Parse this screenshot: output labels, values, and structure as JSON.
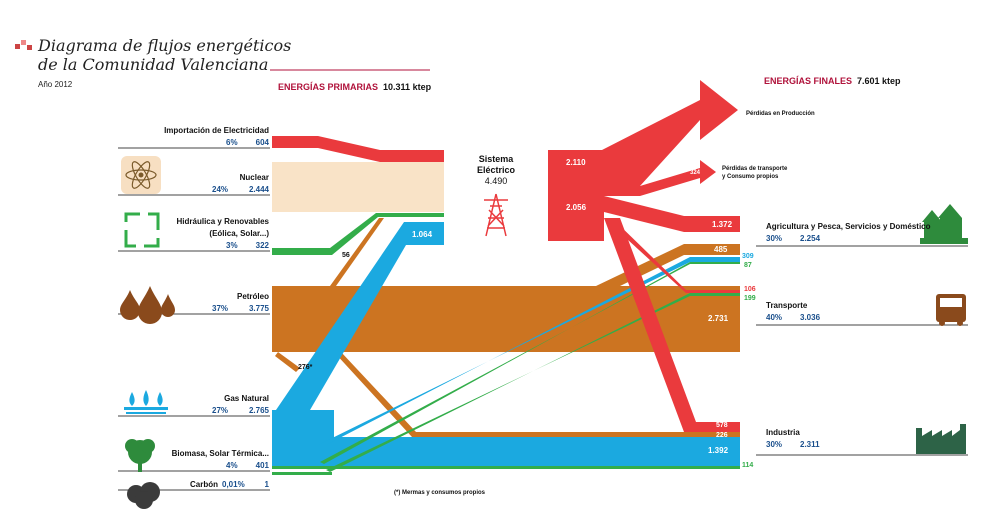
{
  "header": {
    "title_line1": "Diagrama de flujos energéticos",
    "title_line2": "de la Comunidad Valenciana",
    "year": "Año 2012"
  },
  "primary": {
    "label": "ENERGÍAS PRIMARIAS",
    "total": "10.311 ktep",
    "sources": [
      {
        "id": "importacion",
        "name": "Importación de Electricidad",
        "pct": "6%",
        "value": "604",
        "icon": "none"
      },
      {
        "id": "nuclear",
        "name": "Nuclear",
        "pct": "24%",
        "value": "2.444",
        "icon": "atom-icon"
      },
      {
        "id": "renovables",
        "name": "Hidráulica y Renovables",
        "name2": "(Eólica, Solar...)",
        "pct": "3%",
        "value": "322",
        "icon": "recycle-icon"
      },
      {
        "id": "petroleo",
        "name": "Petróleo",
        "pct": "37%",
        "value": "3.775",
        "icon": "oil-drops-icon"
      },
      {
        "id": "gas",
        "name": "Gas Natural",
        "pct": "27%",
        "value": "2.765",
        "icon": "gas-flame-icon"
      },
      {
        "id": "biomasa",
        "name": "Biomasa, Solar Térmica...",
        "pct": "4%",
        "value": "401",
        "icon": "tree-icon"
      },
      {
        "id": "carbon",
        "name": "Carbón",
        "pct": "0,01%",
        "value": "1",
        "icon": "coal-icon"
      }
    ]
  },
  "electric_system": {
    "name_line1": "Sistema",
    "name_line2": "Eléctrico",
    "value": "4.490",
    "icon": "power-tower-icon"
  },
  "final": {
    "label": "ENERGÍAS FINALES",
    "total": "7.601 ktep",
    "sectors": [
      {
        "id": "agricultura",
        "name": "Agricultura y Pesca, Servicios y Doméstico",
        "pct": "30%",
        "value": "2.254",
        "icon": "houses-icon"
      },
      {
        "id": "transporte",
        "name": "Transporte",
        "pct": "40%",
        "value": "3.036",
        "icon": "bus-icon"
      },
      {
        "id": "industria",
        "name": "Industria",
        "pct": "30%",
        "value": "2.311",
        "icon": "factory-icon"
      }
    ]
  },
  "flow_labels": {
    "perdidas_produccion": "Pérdidas en Producción",
    "perdidas_transporte_1": "Pérdidas de transporte",
    "perdidas_transporte_2": "y Consumo propios",
    "v_2110": "2.110",
    "v_324": "324",
    "v_2056": "2.056",
    "v_1372": "1.372",
    "v_1064": "1.064",
    "v_485": "485",
    "v_309": "309",
    "v_87": "87",
    "v_106": "106",
    "v_199": "199",
    "v_2731": "2.731",
    "v_578": "578",
    "v_226": "226",
    "v_1392": "1.392",
    "v_114": "114",
    "v_56": "56",
    "v_276": "276*"
  },
  "footnote": "(*) Mermas y consumos propios",
  "colors": {
    "electric": "#ea3a3d",
    "nuclear": "#f9e3c7",
    "oil": "#cc7421",
    "gas": "#1ba9e0",
    "renew": "#33ad4a",
    "accent": "#b0123b",
    "blue_text": "#1a4f8c",
    "icon_green": "#2e8b3c",
    "icon_brown": "#8a4a1c",
    "icon_dark": "#2d6347",
    "coal": "#3b3b3b"
  }
}
